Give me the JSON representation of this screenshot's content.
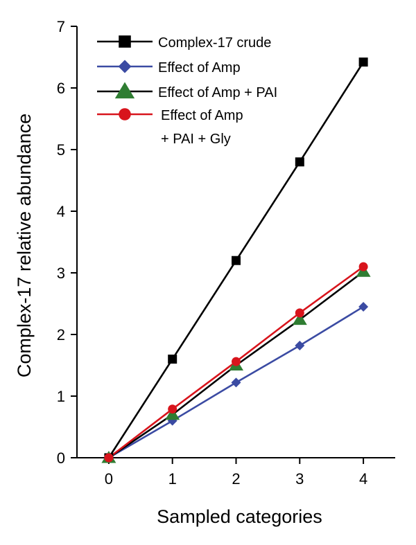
{
  "chart_data": {
    "type": "line",
    "title": "",
    "xlabel": "Sampled categories",
    "ylabel": "Complex-17 relative abundance",
    "xlim": [
      -0.5,
      4.5
    ],
    "ylim": [
      0,
      7
    ],
    "x_ticks": [
      "0",
      "1",
      "2",
      "3",
      "4"
    ],
    "y_ticks": [
      "0",
      "1",
      "2",
      "3",
      "4",
      "5",
      "6",
      "7"
    ],
    "grid": false,
    "legend_position": "top-left",
    "x": [
      0,
      1,
      2,
      3,
      4
    ],
    "series": [
      {
        "name": "Complex-17  crude",
        "name_lines": [
          "Complex-17  crude"
        ],
        "marker": "square",
        "line_color": "#000000",
        "marker_color": "#000000",
        "values": [
          0,
          1.6,
          3.2,
          4.8,
          6.42
        ]
      },
      {
        "name": "Effect of Amp",
        "name_lines": [
          "Effect of Amp"
        ],
        "marker": "diamond",
        "line_color": "#3b4ba3",
        "marker_color": "#3b4ba3",
        "values": [
          0,
          0.6,
          1.22,
          1.82,
          2.45
        ]
      },
      {
        "name": "Effect of Amp  + PAI",
        "name_lines": [
          "Effect of Amp  + PAI"
        ],
        "marker": "triangle",
        "line_color": "#000000",
        "marker_color": "#2f7d32",
        "values": [
          0,
          0.7,
          1.5,
          2.24,
          3.02
        ]
      },
      {
        "name": "Effect of Amp + PAI + Gly",
        "name_lines": [
          "Effect of Amp",
          "+ PAI + Gly"
        ],
        "marker": "circle",
        "line_color": "#d8141c",
        "marker_color": "#d8141c",
        "values": [
          0,
          0.79,
          1.56,
          2.35,
          3.1
        ]
      }
    ]
  }
}
